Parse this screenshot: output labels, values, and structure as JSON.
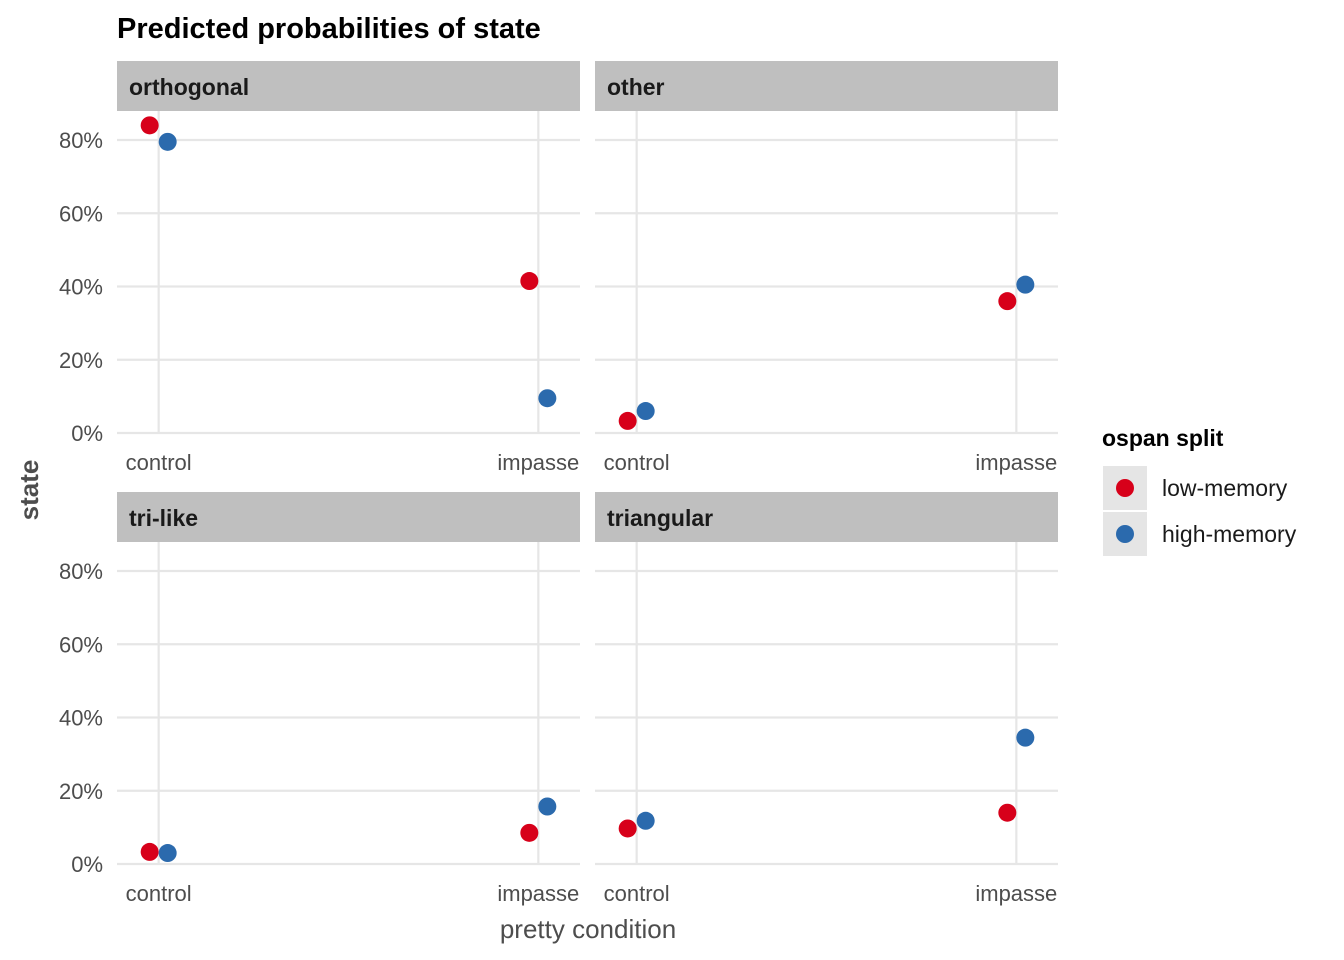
{
  "chart_data": {
    "type": "scatter",
    "title": "Predicted probabilities of state",
    "xlabel": "pretty condition",
    "ylabel": "state",
    "categories": [
      "control",
      "impasse"
    ],
    "ylim": [
      0,
      0.9
    ],
    "yticks": [
      0,
      0.2,
      0.4,
      0.6,
      0.8
    ],
    "ytick_labels": [
      "0%",
      "20%",
      "40%",
      "60%",
      "80%"
    ],
    "grid": true,
    "legend": {
      "title": "ospan split",
      "placement": "right",
      "entries": [
        {
          "name": "low-memory",
          "color": "#d7001a"
        },
        {
          "name": "high-memory",
          "color": "#2b6aad"
        }
      ]
    },
    "panels": [
      {
        "name": "orthogonal",
        "series": [
          {
            "name": "low-memory",
            "values": [
              0.84,
              0.415
            ]
          },
          {
            "name": "high-memory",
            "values": [
              0.795,
              0.095
            ]
          }
        ]
      },
      {
        "name": "other",
        "series": [
          {
            "name": "low-memory",
            "values": [
              0.033,
              0.36
            ]
          },
          {
            "name": "high-memory",
            "values": [
              0.06,
              0.405
            ]
          }
        ]
      },
      {
        "name": "tri-like",
        "series": [
          {
            "name": "low-memory",
            "values": [
              0.033,
              0.085
            ]
          },
          {
            "name": "high-memory",
            "values": [
              0.03,
              0.157
            ]
          }
        ]
      },
      {
        "name": "triangular",
        "series": [
          {
            "name": "low-memory",
            "values": [
              0.097,
              0.14
            ]
          },
          {
            "name": "high-memory",
            "values": [
              0.118,
              0.345
            ]
          }
        ]
      }
    ]
  }
}
